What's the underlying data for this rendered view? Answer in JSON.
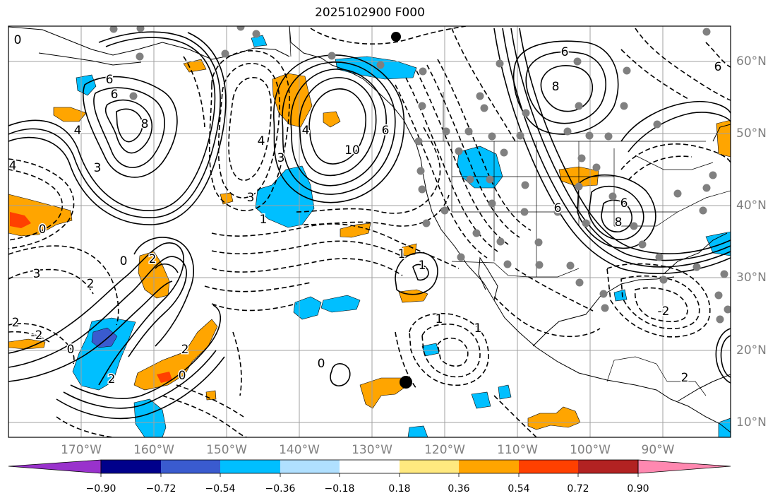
{
  "title": "2025102900 F000",
  "longitude_labels": [
    "170°W",
    "160°W",
    "150°W",
    "140°W",
    "130°W",
    "120°W",
    "110°W",
    "100°W",
    "90°W"
  ],
  "latitude_labels": [
    "60°N",
    "50°N",
    "40°N",
    "30°N",
    "20°N",
    "10°N"
  ],
  "contour_labels": [
    "0",
    "6",
    "6",
    "8",
    "4",
    "3",
    "4",
    "3",
    "10",
    "6",
    "4",
    "3",
    "1",
    "1",
    "1",
    "-2",
    "2",
    "2",
    "0",
    "0",
    "0",
    "3",
    "4",
    "6",
    "8",
    "6",
    "8",
    "-2",
    "1",
    "1",
    "2",
    "6",
    "0",
    "2",
    "2",
    "2",
    "0",
    "6"
  ],
  "colorbar": {
    "ticks": [
      "−0.90",
      "−0.72",
      "−0.54",
      "−0.36",
      "−0.18",
      "0.18",
      "0.36",
      "0.54",
      "0.72",
      "0.90"
    ],
    "colors": [
      "#9932cc",
      "#00008b",
      "#3a5bcf",
      "#00bfff",
      "#b0e0ff",
      "#ffffff",
      "#ffe97f",
      "#ffa500",
      "#ff4000",
      "#b22222",
      "#ff88b0"
    ]
  },
  "colors": {
    "negative_fill": "#00bfff",
    "positive_fill": "#ffa500",
    "strong_positive_fill": "#ff4000",
    "grid": "#a0a0a0",
    "station_dots": "#808080"
  }
}
